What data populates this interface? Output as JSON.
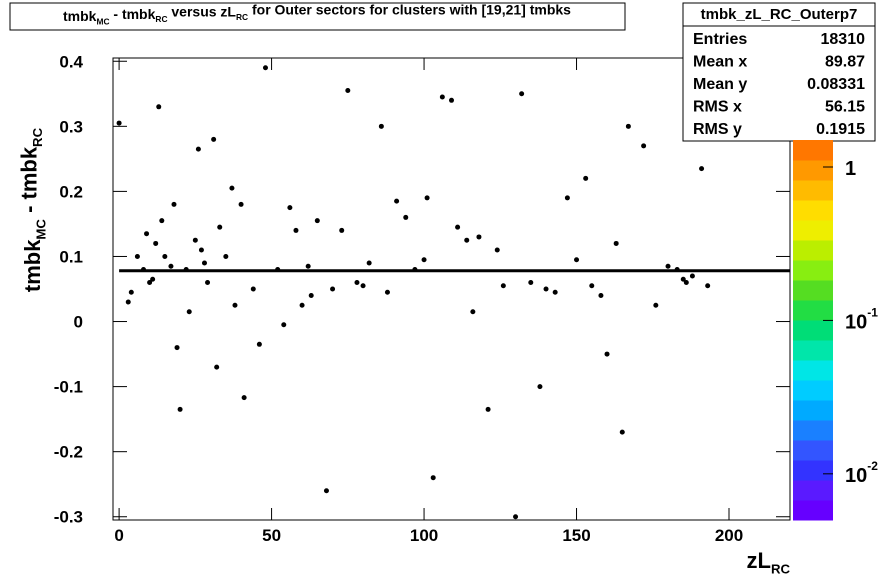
{
  "chart_data": {
    "type": "profile",
    "title": [
      {
        "text": "tmbk"
      },
      {
        "sub": "MC"
      },
      {
        "text": " - tmbk"
      },
      {
        "sub": "RC"
      },
      {
        "text": " versus zL"
      },
      {
        "sub": "RC"
      },
      {
        "text": " for Outer sectors for clusters with [19,21] tmbks"
      }
    ],
    "x_label": [
      {
        "text": "zL"
      },
      {
        "sub": "RC"
      }
    ],
    "y_label": [
      {
        "text": "tmbk"
      },
      {
        "sub": "MC"
      },
      {
        "text": " - tmbk"
      },
      {
        "sub": "RC"
      }
    ],
    "xlim": [
      -2,
      220
    ],
    "xticks": [
      0,
      50,
      100,
      150,
      200
    ],
    "ylim": [
      -0.305,
      0.405
    ],
    "yticks": [
      -0.3,
      -0.2,
      -0.1,
      0,
      0.1,
      0.2,
      0.3,
      0.4
    ],
    "zlim": [
      0.005,
      1.5
    ],
    "zlog": true,
    "zticks": [
      {
        "value": 1,
        "label": "1"
      },
      {
        "value": 0.1,
        "label": "10",
        "exponent": "-1"
      },
      {
        "value": 0.01,
        "label": "10",
        "exponent": "-2"
      }
    ],
    "profile": {
      "x": [
        0,
        3,
        4,
        6,
        8,
        9,
        10,
        11,
        12,
        13,
        14,
        15,
        17,
        18,
        19,
        20,
        22,
        23,
        25,
        26,
        27,
        28,
        29,
        31,
        32,
        33,
        35,
        37,
        38,
        40,
        41,
        44,
        46,
        48,
        52,
        54,
        56,
        58,
        60,
        62,
        63,
        65,
        68,
        70,
        73,
        75,
        78,
        80,
        82,
        86,
        88,
        91,
        94,
        97,
        100,
        101,
        103,
        106,
        109,
        111,
        114,
        116,
        118,
        121,
        124,
        126,
        130,
        132,
        135,
        138,
        140,
        143,
        147,
        150,
        153,
        155,
        158,
        160,
        163,
        165,
        167,
        172,
        176,
        180,
        183,
        185,
        186,
        188,
        191,
        193
      ],
      "y": [
        0.305,
        0.03,
        0.045,
        0.1,
        0.08,
        0.135,
        0.06,
        0.065,
        0.12,
        0.33,
        0.155,
        0.1,
        0.085,
        0.18,
        -0.04,
        -0.135,
        0.08,
        0.015,
        0.125,
        0.265,
        0.11,
        0.09,
        0.06,
        0.28,
        -0.07,
        0.145,
        0.1,
        0.205,
        0.025,
        0.18,
        -0.117,
        0.05,
        -0.035,
        0.39,
        0.08,
        -0.005,
        0.175,
        0.14,
        0.025,
        0.085,
        0.04,
        0.155,
        -0.26,
        0.05,
        0.14,
        0.355,
        0.06,
        0.055,
        0.09,
        0.3,
        0.045,
        0.185,
        0.16,
        0.08,
        0.095,
        0.19,
        -0.24,
        0.345,
        0.34,
        0.145,
        0.125,
        0.015,
        0.13,
        -0.135,
        0.11,
        0.055,
        -0.3,
        0.35,
        0.06,
        -0.1,
        0.05,
        0.045,
        0.19,
        0.095,
        0.22,
        0.055,
        0.04,
        -0.05,
        0.12,
        -0.17,
        0.3,
        0.27,
        0.025,
        0.085,
        0.08,
        0.065,
        0.06,
        0.07,
        0.235,
        0.055
      ]
    },
    "fit_line": {
      "x": [
        0,
        220
      ],
      "y": 0.078
    },
    "stats": {
      "name": "tmbk_zL_RC_Outerp7",
      "rows": [
        [
          "Entries",
          "18310"
        ],
        [
          "Mean x",
          "89.87"
        ],
        [
          "Mean y",
          "0.08331"
        ],
        [
          "RMS x",
          "56.15"
        ],
        [
          "RMS y",
          "0.1915"
        ]
      ]
    }
  }
}
